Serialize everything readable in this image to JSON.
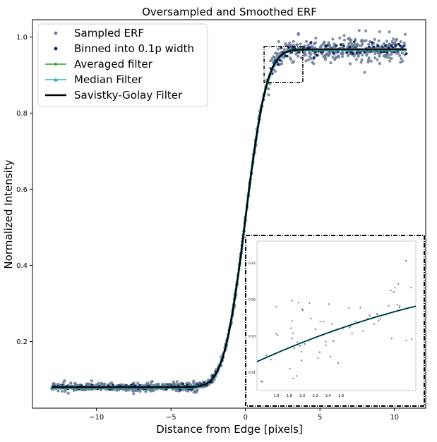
{
  "chart_data": {
    "type": "scatter",
    "title": "Oversampled and Smoothed ERF",
    "xlabel": "Distance from Edge [pixels]",
    "ylabel": "Normalized Intensity",
    "xlim": [
      -14.3,
      12.1
    ],
    "ylim": [
      0.025,
      1.045
    ],
    "xticks": [
      -10,
      -5,
      0,
      5,
      10
    ],
    "xtick_labels": [
      "−10",
      "−5",
      "0",
      "5",
      "10"
    ],
    "yticks": [
      0.2,
      0.4,
      0.6,
      0.8,
      1.0
    ],
    "ytick_labels": [
      "0.2",
      "0.4",
      "0.6",
      "0.8",
      "1.0"
    ],
    "grid": false,
    "legend_position": "top-left",
    "model": {
      "form": "erf",
      "center": 0,
      "width": 1.6,
      "low": 0.08,
      "high": 0.967,
      "x_range": [
        -13.0,
        10.8
      ],
      "note_points_scatter": 0.012
    },
    "series": [
      {
        "name": "Sampled ERF",
        "color": "#6b7a94",
        "marker": "circle",
        "style": "scatter"
      },
      {
        "name": "Binned into 0.1p width",
        "color": "#16245e",
        "marker": "circle",
        "style": "scatter"
      },
      {
        "name": "Averaged filter",
        "color": "#2ca02c",
        "marker": "star",
        "style": "line"
      },
      {
        "name": "Median Filter",
        "color": "#2fb3b8",
        "marker": "triangle",
        "style": "line"
      },
      {
        "name": "Savistky-Golay Filter",
        "color": "#000000",
        "marker": "none",
        "style": "line"
      }
    ],
    "zoom_box": {
      "x": [
        1.25,
        3.85
      ],
      "y": [
        0.88,
        0.975
      ]
    },
    "inset": {
      "xlim": [
        1.3,
        3.75
      ],
      "ylim": [
        0.9,
        0.982
      ],
      "xticks": [
        1.6,
        1.8,
        2.0,
        2.2,
        2.4,
        2.6
      ],
      "xtick_labels": [
        "1.6",
        "1.8",
        "2.0",
        "2.2",
        "2.4",
        "2.6"
      ],
      "yticks": [
        0.91,
        0.93,
        0.95,
        0.97
      ],
      "ytick_labels": [
        "0.91",
        "0.93",
        "0.95",
        "0.97"
      ]
    }
  }
}
